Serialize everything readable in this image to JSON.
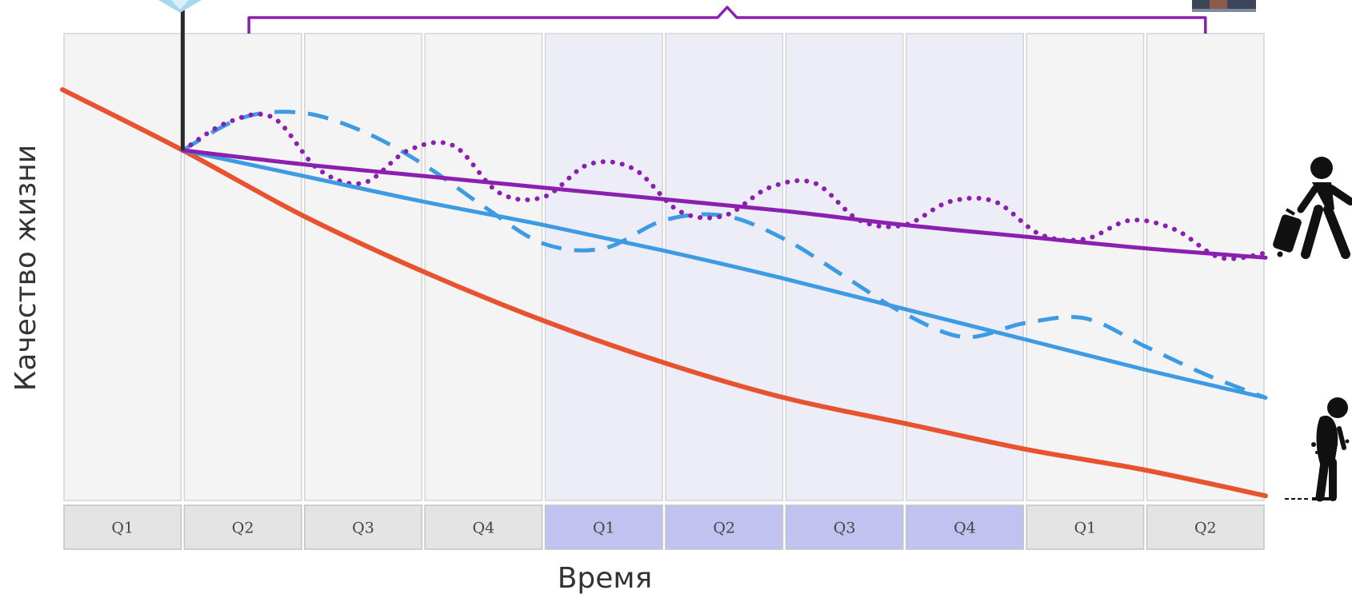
{
  "colors": {
    "column_plain": "#f4f4f4",
    "column_highlight": "#ededf7",
    "column_border": "#d4d4d4",
    "quarter_plain": "#e4e4e4",
    "quarter_highlight": "#c2c2f0",
    "quarter_border": "#c4c4c4",
    "red_curve": "#e8532f",
    "blue_curve": "#3d9be3",
    "purple_curve": "#8b1fb0",
    "bracket": "#8b1fb0",
    "marker_line": "#2b2b2b",
    "person_icon": "#111111"
  },
  "icons": {
    "top_marker": "crystal-icon",
    "top_right": "photo-thumbnail-icon",
    "healthy": "walking-traveller-icon",
    "unhealthy": "hunched-elderly-person-icon"
  },
  "chart_data": {
    "type": "line",
    "xlabel": "Время",
    "ylabel": "Качество жизни",
    "categories": [
      "Q1",
      "Q2",
      "Q3",
      "Q4",
      "Q1",
      "Q2",
      "Q3",
      "Q4",
      "Q1",
      "Q2"
    ],
    "highlighted_categories": [
      4,
      5,
      6,
      7
    ],
    "xlim": [
      0,
      10
    ],
    "ylim": [
      0,
      100
    ],
    "grid": false,
    "intervention_x": 1,
    "bracket_range": [
      1.55,
      9.5
    ],
    "series": [
      {
        "style": "solid",
        "color": "red",
        "x": [
          0,
          1,
          2,
          3,
          4,
          5,
          6,
          7,
          8,
          9,
          10
        ],
        "y": [
          88,
          75,
          61,
          49,
          38.5,
          29.5,
          22,
          16.5,
          11,
          6.5,
          1
        ]
      },
      {
        "style": "solid",
        "color": "blue",
        "x": [
          1,
          2,
          3,
          4,
          5,
          6,
          7,
          8,
          9,
          10
        ],
        "y": [
          75,
          69.5,
          64,
          59,
          53.5,
          47.5,
          41,
          34.5,
          28,
          22
        ]
      },
      {
        "style": "dashed",
        "color": "blue",
        "x": [
          1,
          1.5,
          2,
          2.5,
          3,
          3.5,
          4,
          4.5,
          5,
          5.5,
          6,
          6.5,
          7,
          7.5,
          8,
          8.5,
          9,
          9.5,
          10
        ],
        "y": [
          75,
          82,
          83,
          79,
          72,
          63,
          55,
          54,
          60,
          61,
          56,
          48,
          40,
          35,
          38,
          39,
          33,
          27,
          22
        ]
      },
      {
        "style": "solid",
        "color": "purple",
        "x": [
          1,
          2,
          3,
          4,
          5,
          6,
          7,
          8,
          9,
          10
        ],
        "y": [
          75,
          72,
          69.5,
          67,
          64.5,
          62,
          59,
          56.5,
          54,
          52
        ]
      },
      {
        "style": "dotted",
        "color": "purple",
        "x": [
          1,
          1.375,
          1.75,
          2.125,
          2.5,
          2.875,
          3.25,
          3.625,
          4,
          4.375,
          4.75,
          5.125,
          5.5,
          5.875,
          6.25,
          6.625,
          7,
          7.375,
          7.75,
          8.125,
          8.5,
          8.875,
          9.25,
          9.625,
          10
        ],
        "y": [
          75,
          81,
          82,
          71,
          68,
          75,
          76,
          66,
          65,
          72,
          71,
          62,
          61,
          67,
          68,
          60,
          59,
          64,
          64,
          57,
          56,
          60,
          58,
          52,
          53
        ]
      }
    ]
  }
}
